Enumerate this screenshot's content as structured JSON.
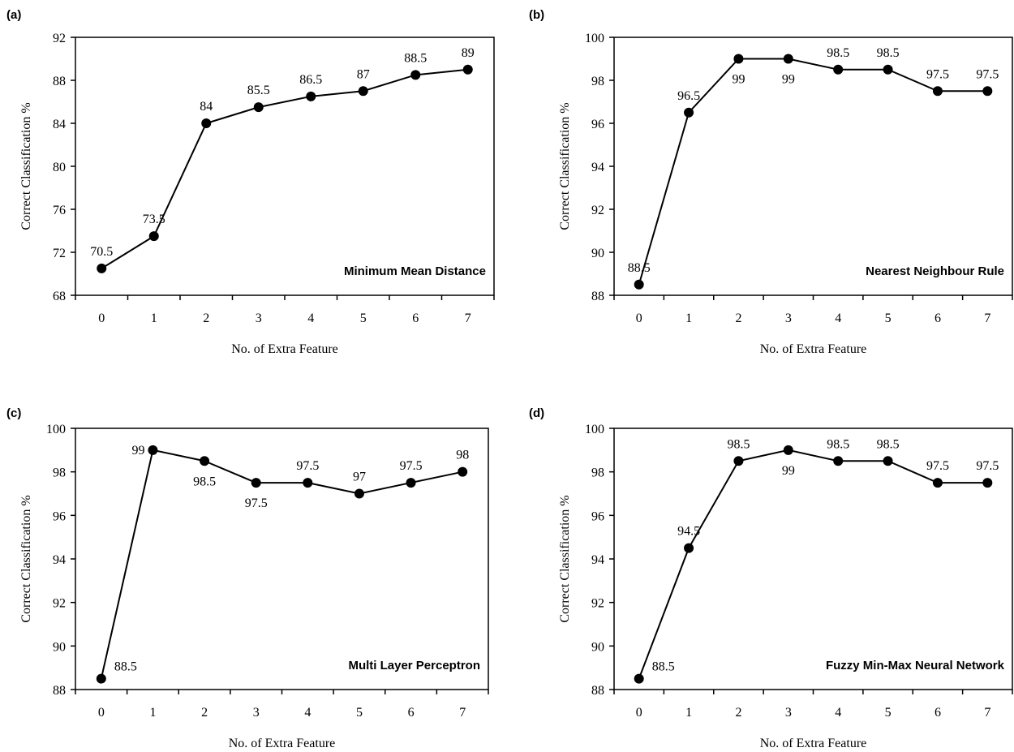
{
  "chart_data": [
    {
      "panel": "(a)",
      "type": "line",
      "title": "Minimum Mean Distance",
      "xlabel": "No. of Extra Feature",
      "ylabel": "Correct Classification %",
      "x": [
        0,
        1,
        2,
        3,
        4,
        5,
        6,
        7
      ],
      "y": [
        70.5,
        73.5,
        84,
        85.5,
        86.5,
        87,
        88.5,
        89
      ],
      "data_labels": [
        "70.5",
        "73.5",
        "84",
        "85.5",
        "86.5",
        "87",
        "88.5",
        "89"
      ],
      "label_positions": [
        "above",
        "above",
        "above",
        "above",
        "above",
        "above",
        "above",
        "above"
      ],
      "ylim": [
        68,
        92
      ],
      "yticks": [
        68,
        72,
        76,
        80,
        84,
        88,
        92
      ],
      "xticks": [
        "0",
        "1",
        "2",
        "3",
        "4",
        "5",
        "6",
        "7"
      ],
      "grid": false,
      "legend": "none",
      "color": "#000000"
    },
    {
      "panel": "(b)",
      "type": "line",
      "title": "Nearest Neighbour Rule",
      "xlabel": "No. of Extra Feature",
      "ylabel": "Correct Classification %",
      "x": [
        0,
        1,
        2,
        3,
        4,
        5,
        6,
        7
      ],
      "y": [
        88.5,
        96.5,
        99,
        99,
        98.5,
        98.5,
        97.5,
        97.5
      ],
      "data_labels": [
        "88.5",
        "96.5",
        "99",
        "99",
        "98.5",
        "98.5",
        "97.5",
        "97.5"
      ],
      "label_positions": [
        "above",
        "above",
        "below",
        "below",
        "above",
        "above",
        "above",
        "above"
      ],
      "ylim": [
        88,
        100
      ],
      "yticks": [
        88,
        90,
        92,
        94,
        96,
        98,
        100
      ],
      "xticks": [
        "0",
        "1",
        "2",
        "3",
        "4",
        "5",
        "6",
        "7"
      ],
      "grid": false,
      "legend": "none",
      "color": "#000000"
    },
    {
      "panel": "(c)",
      "type": "line",
      "title": "Multi Layer Perceptron",
      "xlabel": "No. of Extra Feature",
      "ylabel": "Correct Classification %",
      "x": [
        0,
        1,
        2,
        3,
        4,
        5,
        6,
        7
      ],
      "y": [
        88.5,
        99,
        98.5,
        97.5,
        97.5,
        97,
        97.5,
        98
      ],
      "data_labels": [
        "88.5",
        "99",
        "98.5",
        "97.5",
        "97.5",
        "97",
        "97.5",
        "98"
      ],
      "label_positions": [
        "right",
        "left",
        "below",
        "below",
        "above",
        "above",
        "above",
        "above"
      ],
      "ylim": [
        88,
        100
      ],
      "yticks": [
        88,
        90,
        92,
        94,
        96,
        98,
        100
      ],
      "xticks": [
        "0",
        "1",
        "2",
        "3",
        "4",
        "5",
        "6",
        "7"
      ],
      "grid": false,
      "legend": "none",
      "color": "#000000"
    },
    {
      "panel": "(d)",
      "type": "line",
      "title": "Fuzzy Min-Max Neural Network",
      "xlabel": "No. of Extra Feature",
      "ylabel": "Correct Classification %",
      "x": [
        0,
        1,
        2,
        3,
        4,
        5,
        6,
        7
      ],
      "y": [
        88.5,
        94.5,
        98.5,
        99,
        98.5,
        98.5,
        97.5,
        97.5
      ],
      "data_labels": [
        "88.5",
        "94.5",
        "98.5",
        "99",
        "98.5",
        "98.5",
        "97.5",
        "97.5"
      ],
      "label_positions": [
        "right",
        "above",
        "above",
        "below",
        "above",
        "above",
        "above",
        "above"
      ],
      "ylim": [
        88,
        100
      ],
      "yticks": [
        88,
        90,
        92,
        94,
        96,
        98,
        100
      ],
      "xticks": [
        "0",
        "1",
        "2",
        "3",
        "4",
        "5",
        "6",
        "7"
      ],
      "grid": false,
      "legend": "none",
      "color": "#000000"
    }
  ]
}
